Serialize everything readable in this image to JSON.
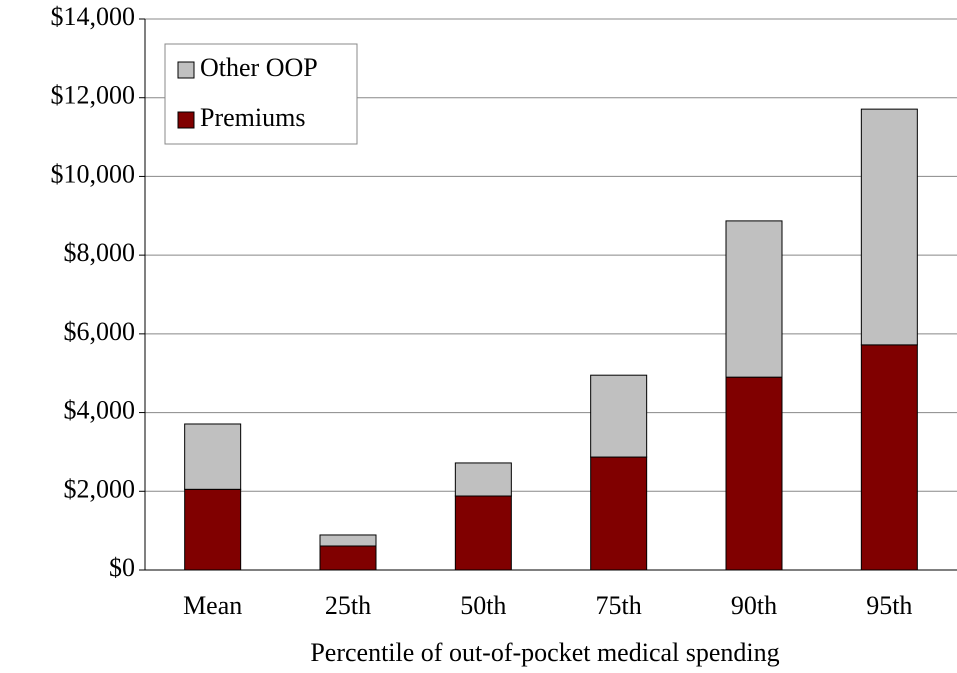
{
  "chart_data": {
    "type": "stacked_bar",
    "x_label": "Percentile of out-of-pocket medical spending",
    "categories": [
      "Mean",
      "25th",
      "50th",
      "75th",
      "90th",
      "95th"
    ],
    "series": [
      {
        "name": "Premiums",
        "color": "#800000",
        "values": [
          2050,
          610,
          1880,
          2870,
          4900,
          5720
        ]
      },
      {
        "name": "Other OOP",
        "color": "#c0c0c0",
        "values": [
          1660,
          280,
          840,
          2080,
          3970,
          5990
        ]
      }
    ],
    "ylim": [
      0,
      14000
    ],
    "yticks": [
      {
        "value": 0,
        "label": "$0"
      },
      {
        "value": 2000,
        "label": "$2,000"
      },
      {
        "value": 4000,
        "label": "$4,000"
      },
      {
        "value": 6000,
        "label": "$6,000"
      },
      {
        "value": 8000,
        "label": "$8,000"
      },
      {
        "value": 10000,
        "label": "$10,000"
      },
      {
        "value": 12000,
        "label": "$12,000"
      },
      {
        "value": 14000,
        "label": "$14,000"
      }
    ],
    "grid": true,
    "legend": "upper-left"
  }
}
